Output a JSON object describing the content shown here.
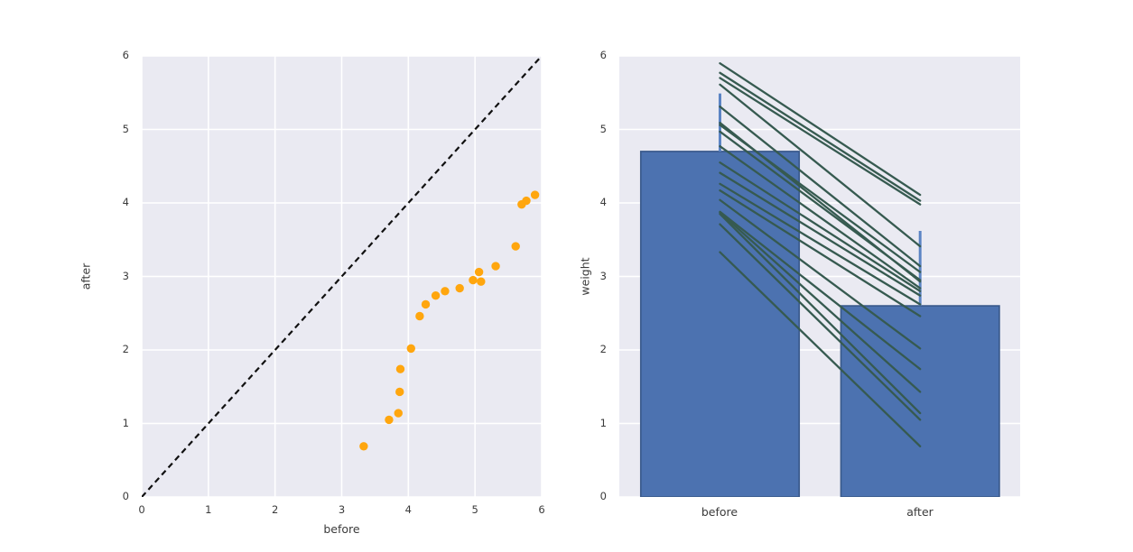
{
  "figure": {
    "background": "#ffffff",
    "axes_background": "#eaeaf2",
    "grid_color": "#ffffff",
    "text_color": "#3b3b3b"
  },
  "colors": {
    "scatter_marker": "#ffa60e",
    "identity_line": "#111111",
    "bar_fill": "#4c72b0",
    "bar_edge": "#3a5a8c",
    "error_bar": "#5b84c4",
    "pair_line": "#365a50"
  },
  "chart_data": [
    {
      "type": "scatter",
      "xlabel": "before",
      "ylabel": "after",
      "xlim": [
        0,
        6
      ],
      "ylim": [
        0,
        6
      ],
      "xticks": [
        0,
        1,
        2,
        3,
        4,
        5,
        6
      ],
      "yticks": [
        0,
        1,
        2,
        3,
        4,
        5,
        6
      ],
      "grid": true,
      "identity_line": {
        "style": "dashed",
        "from": [
          0,
          0
        ],
        "to": [
          6,
          6
        ]
      },
      "points": [
        [
          3.33,
          0.69
        ],
        [
          3.71,
          1.05
        ],
        [
          3.85,
          1.14
        ],
        [
          3.87,
          1.43
        ],
        [
          3.88,
          1.74
        ],
        [
          4.04,
          2.02
        ],
        [
          4.17,
          2.46
        ],
        [
          4.26,
          2.62
        ],
        [
          4.41,
          2.74
        ],
        [
          4.55,
          2.8
        ],
        [
          4.77,
          2.84
        ],
        [
          4.97,
          2.95
        ],
        [
          5.06,
          3.06
        ],
        [
          5.09,
          2.93
        ],
        [
          5.31,
          3.14
        ],
        [
          5.61,
          3.41
        ],
        [
          5.7,
          3.98
        ],
        [
          5.77,
          4.03
        ],
        [
          5.9,
          4.11
        ]
      ]
    },
    {
      "type": "bar",
      "categories": [
        "before",
        "after"
      ],
      "values": [
        4.7,
        2.6
      ],
      "ylabel": "weight",
      "ylim": [
        0,
        6
      ],
      "yticks": [
        0,
        1,
        2,
        3,
        4,
        5,
        6
      ],
      "grid": true,
      "error_intervals": [
        [
          4.7,
          5.49
        ],
        [
          2.6,
          3.62
        ]
      ],
      "paired_lines": [
        [
          3.33,
          0.69
        ],
        [
          3.71,
          1.05
        ],
        [
          3.85,
          1.14
        ],
        [
          3.87,
          1.43
        ],
        [
          3.88,
          1.74
        ],
        [
          4.04,
          2.02
        ],
        [
          4.17,
          2.46
        ],
        [
          4.26,
          2.62
        ],
        [
          4.41,
          2.74
        ],
        [
          4.55,
          2.8
        ],
        [
          4.77,
          2.84
        ],
        [
          4.97,
          2.95
        ],
        [
          5.06,
          3.06
        ],
        [
          5.09,
          2.93
        ],
        [
          5.31,
          3.14
        ],
        [
          5.61,
          3.41
        ],
        [
          5.7,
          3.98
        ],
        [
          5.77,
          4.03
        ],
        [
          5.9,
          4.11
        ]
      ]
    }
  ]
}
